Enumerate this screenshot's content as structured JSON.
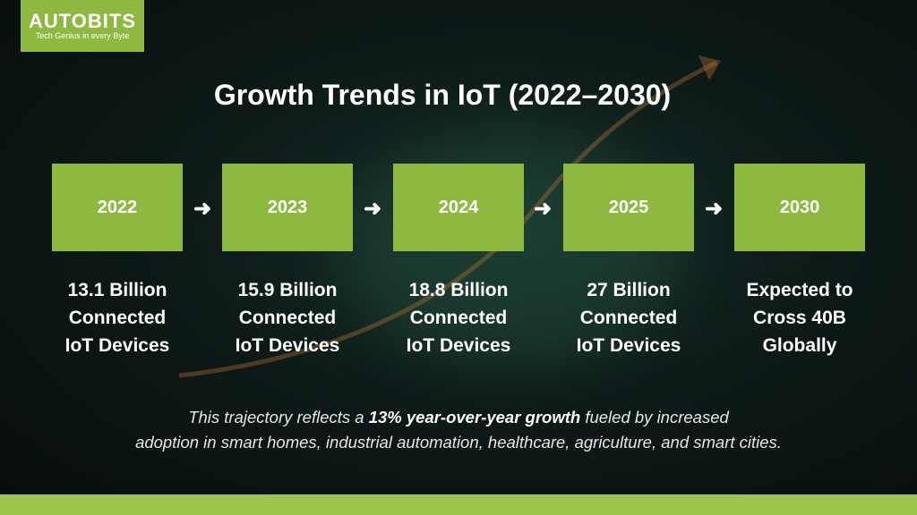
{
  "logo": {
    "name": "AUTOBITS",
    "tagline": "Tech Genius in every Byte"
  },
  "title": "Growth Trends in IoT (2022–2030)",
  "timeline": [
    {
      "year": "2022",
      "lines": [
        "13.1 Billion",
        "Connected",
        "IoT Devices"
      ]
    },
    {
      "year": "2023",
      "lines": [
        "15.9 Billion",
        "Connected",
        "IoT Devices"
      ]
    },
    {
      "year": "2024",
      "lines": [
        "18.8 Billion",
        "Connected",
        "IoT Devices"
      ]
    },
    {
      "year": "2025",
      "lines": [
        "27 Billion",
        "Connected",
        "IoT Devices"
      ]
    },
    {
      "year": "2030",
      "lines": [
        "Expected to",
        "Cross 40B",
        "Globally"
      ]
    }
  ],
  "arrow_icon": "right-arrow-icon",
  "footer": {
    "before": "This trajectory reflects a ",
    "bold": "13% year-over-year growth",
    "after": " fueled by increased",
    "line2": "adoption in smart homes, industrial automation, healthcare, agriculture, and smart cities."
  },
  "colors": {
    "accent": "#8db940",
    "background": "#0d1a18",
    "band": "#9cc64a"
  }
}
